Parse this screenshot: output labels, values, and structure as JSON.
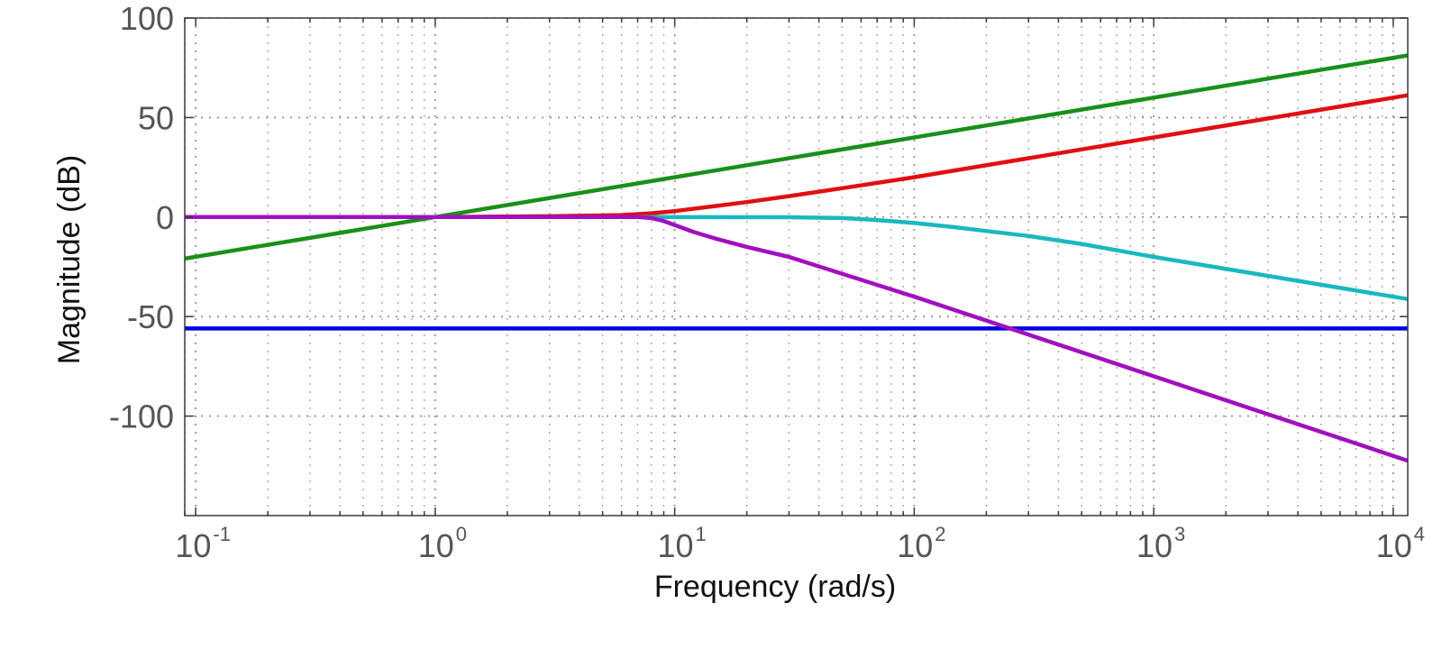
{
  "chart_data": {
    "type": "line",
    "title": "",
    "xlabel": "Frequency  (rad/s)",
    "ylabel": "Magnitude (dB)",
    "x_scale": "log",
    "xlim": [
      0.09,
      11500
    ],
    "ylim": [
      -150,
      100
    ],
    "x_ticks": [
      {
        "base": "10",
        "exp": "-1",
        "value": 0.1
      },
      {
        "base": "10",
        "exp": "0",
        "value": 1
      },
      {
        "base": "10",
        "exp": "1",
        "value": 10
      },
      {
        "base": "10",
        "exp": "2",
        "value": 100
      },
      {
        "base": "10",
        "exp": "3",
        "value": 1000
      },
      {
        "base": "10",
        "exp": "4",
        "value": 10000
      }
    ],
    "y_ticks": [
      {
        "label": "100",
        "value": 100
      },
      {
        "label": "50",
        "value": 50
      },
      {
        "label": "0",
        "value": 0
      },
      {
        "label": "-50",
        "value": -50
      },
      {
        "label": "-100",
        "value": -100
      }
    ],
    "grid": true,
    "series": [
      {
        "color": "#1a8f1a",
        "x": [
          0.09,
          1,
          10,
          100,
          1000,
          11500
        ],
        "y": [
          -20.9,
          0,
          20,
          40,
          60,
          81.2
        ]
      },
      {
        "color": "#e01010",
        "x": [
          0.09,
          1,
          3,
          6,
          8,
          10,
          15,
          20,
          30,
          50,
          100,
          1000,
          11500
        ],
        "y": [
          0,
          0,
          0.4,
          1.0,
          1.9,
          3.0,
          5.6,
          7.5,
          10.5,
          14.5,
          20.0,
          40.0,
          61.2
        ]
      },
      {
        "color": "#1ab8c0",
        "x": [
          0.09,
          1,
          10,
          30,
          50,
          70,
          100,
          150,
          200,
          300,
          500,
          1000,
          11500
        ],
        "y": [
          0,
          0,
          0,
          -0.1,
          -0.5,
          -1.5,
          -3.0,
          -5.2,
          -7.0,
          -9.5,
          -13.5,
          -20.0,
          -41.2
        ]
      },
      {
        "color": "#0000e0",
        "x": [
          0.09,
          11500
        ],
        "y": [
          -56,
          -56
        ]
      },
      {
        "color": "#a010c0",
        "x": [
          0.09,
          1,
          5,
          7,
          8,
          9,
          10,
          12,
          15,
          20,
          30,
          100,
          1000,
          11500
        ],
        "y": [
          0,
          0,
          0,
          0,
          -0.5,
          -2,
          -4,
          -7.5,
          -11,
          -15,
          -20,
          -40,
          -80,
          -122.4
        ]
      }
    ]
  }
}
